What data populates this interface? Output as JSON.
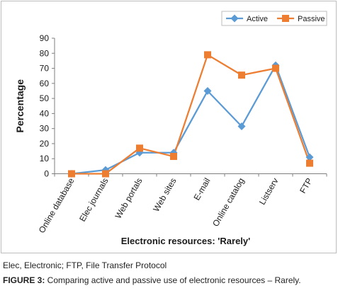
{
  "figure": {
    "note": "Elec, Electronic; FTP, File Transfer Protocol",
    "caption_label": "FIGURE 3:",
    "caption_text": " Comparing active and passive use of electronic resources – Rarely."
  },
  "chart_data": {
    "type": "line",
    "title": "",
    "xlabel": "Electronic resources: 'Rarely'",
    "ylabel": "Percentage",
    "ylim": [
      0,
      90
    ],
    "yticks": [
      0,
      10,
      20,
      30,
      40,
      50,
      60,
      70,
      80,
      90
    ],
    "grid": false,
    "legend_position": "top-right",
    "categories": [
      "Online database",
      "Elec journals",
      "Web portals",
      "Web sites",
      "E-mail",
      "Online catalog",
      "Listserv",
      "FTP"
    ],
    "series": [
      {
        "name": "Active",
        "color": "#5b9bd5",
        "marker": "diamond",
        "values": [
          0,
          2.5,
          14,
          14,
          55,
          31.5,
          72,
          11
        ]
      },
      {
        "name": "Passive",
        "color": "#ed7d31",
        "marker": "square",
        "values": [
          0,
          0,
          17,
          11.5,
          79,
          65.5,
          70,
          7
        ]
      }
    ]
  }
}
